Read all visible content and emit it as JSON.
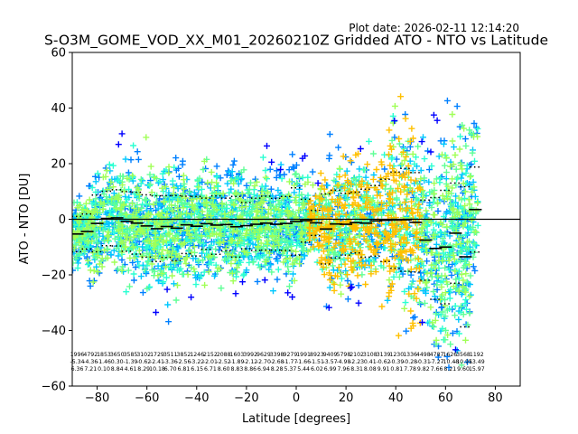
{
  "chart_data": {
    "type": "scatter",
    "title": "S-O3M_GOME_VOD_XX_M01_20260210Z Gridded ATO - NTO vs Latitude",
    "plot_date": "Plot date: 2026-02-11 12:14:20",
    "xlabel": "Latitude [degrees]",
    "ylabel": "ATO - NTO [DU]",
    "xlim": [
      -90,
      90
    ],
    "ylim": [
      -60,
      60
    ],
    "x_ticks": [
      -80,
      -60,
      -40,
      -20,
      0,
      20,
      40,
      60,
      80
    ],
    "x_tick_labels": [
      "−80",
      "−60",
      "−40",
      "−20",
      "0",
      "20",
      "40",
      "60",
      "80"
    ],
    "y_ticks": [
      -60,
      -40,
      -20,
      0,
      20,
      40,
      60
    ],
    "y_tick_labels": [
      "−60",
      "−40",
      "−20",
      "0",
      "20",
      "40",
      "60"
    ],
    "zero_line": 0,
    "scatter_colors": [
      "#0000ff",
      "#0080ff",
      "#00c8ff",
      "#2affd2",
      "#60ff97",
      "#a0ff57",
      "#ffc000"
    ],
    "bin_mean": {
      "lat": [
        -88,
        -84,
        -80,
        -76,
        -72,
        -68,
        -64,
        -60,
        -56,
        -52,
        -48,
        -44,
        -40,
        -36,
        -32,
        -28,
        -24,
        -20,
        -16,
        -12,
        -8,
        -4,
        0,
        4,
        8,
        12,
        16,
        20,
        24,
        28,
        32,
        36,
        40,
        44,
        48,
        52,
        56,
        60,
        64,
        68,
        72
      ],
      "values": [
        -5.3,
        -4.4,
        -1.5,
        0.3,
        0.5,
        -0.8,
        -1.4,
        -2.4,
        -3.4,
        -2.6,
        -3.2,
        -2.0,
        -2.5,
        -1.6,
        -2.1,
        -1.9,
        -2.7,
        -2.3,
        -1.8,
        -1.4,
        -1.8,
        -1.5,
        -0.8,
        -0.5,
        -1.3,
        -3.5,
        -1.7,
        -1.8,
        -1.2,
        -1.4,
        -0.6,
        -0.4,
        -0.3,
        -0.2,
        -1.1,
        -7.5,
        -10.5,
        -10.0,
        -5.0,
        -13.5,
        3.5
      ]
    },
    "stddev_upper": [
      1.0,
      1.9,
      8.7,
      10.1,
      10.6,
      9.9,
      9.7,
      8.8,
      8.4,
      8.5,
      8.5,
      8.3,
      8.2,
      7.6,
      8.4,
      7.6,
      8.2,
      6.0,
      7.6,
      8.3,
      7.5,
      8.2,
      11.3,
      7.2,
      3.2,
      9.1,
      10.5,
      9.3,
      9.7,
      10.8,
      12.1,
      14.4,
      17.0,
      18.3,
      16.8,
      6.9,
      7.8,
      10.4,
      13.0,
      11.7,
      18.8
    ],
    "stddev_lower": [
      -11.7,
      -10.7,
      -11.7,
      -9.5,
      -9.6,
      -11.5,
      -12.5,
      -13.6,
      -15.2,
      -13.7,
      -14.9,
      -12.3,
      -13.2,
      -10.8,
      -12.6,
      -11.4,
      -13.6,
      -10.6,
      -11.2,
      -11.1,
      -11.1,
      -11.2,
      -12.9,
      -8.2,
      -5.8,
      -16.1,
      -13.9,
      -12.9,
      -12.1,
      -13.6,
      -13.3,
      -15.2,
      -17.6,
      -18.7,
      -19.0,
      -21.9,
      -28.8,
      -30.4,
      -23.0,
      -38.7,
      -11.8
    ],
    "stats_rows": {
      "counts": [
        "1996",
        "4792",
        "1853",
        "3650",
        "3585",
        "3102",
        "1729",
        "3511",
        "3852",
        "1246",
        "2152",
        "2088",
        "1603",
        "3992",
        "9629",
        "3398",
        "9279",
        "1991",
        "8923",
        "9409",
        "5798",
        "2102",
        "3108",
        "3139",
        "1230",
        "1336",
        "4498",
        "4787",
        "1626",
        "3568",
        "1192"
      ],
      "means": [
        "-5.34",
        "-4.36",
        "-1.46",
        "0.30",
        "-1.39",
        "-0.62",
        "-2.41",
        "-3.36",
        "-2.56",
        "-3.22",
        "-2.01",
        "-2.52",
        "-1.89",
        "-2.12",
        "-2.70",
        "-2.68",
        "-1.77",
        "-1.66",
        "-1.51",
        "-3.57",
        "-4.98",
        "-2.23",
        "0.41",
        "-0.62",
        "-0.39",
        "-0.28",
        "-0.31",
        "-7.27",
        "-10.48",
        "-10.95",
        "13.49"
      ],
      "stds": [
        "6.36",
        "7.21",
        "0.10",
        "8.84",
        "4.61",
        "8.29",
        "10.18",
        "6.70",
        "6.81",
        "6.15",
        "6.71",
        "8.60",
        "8.83",
        "8.86",
        "6.94",
        "8.28",
        "5.37",
        "5.44",
        "6.02",
        "6.99",
        "7.96",
        "8.31",
        "8.08",
        "9.91",
        "0.81",
        "7.78",
        "9.82",
        "7.66",
        "8.21",
        "9.60",
        "15.97"
      ]
    }
  }
}
